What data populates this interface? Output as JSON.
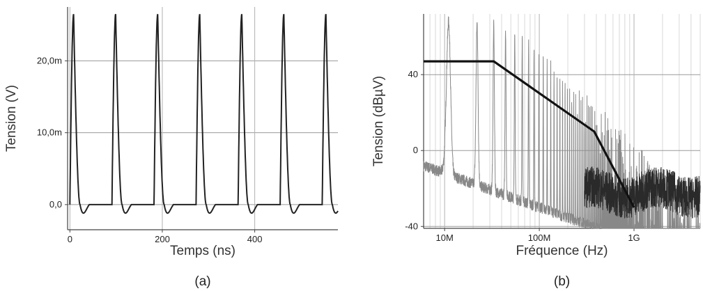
{
  "chart_data": [
    {
      "id": "a",
      "type": "line",
      "panel_label": "(a)",
      "xlabel": "Temps (ns)",
      "ylabel": "Tension (V)",
      "xlim": [
        -5,
        580
      ],
      "ylim": [
        -0.0035,
        0.0275
      ],
      "x_ticks": [
        0,
        200,
        400
      ],
      "x_tick_labels": [
        "0",
        "200",
        "400"
      ],
      "y_ticks": [
        0,
        0.01,
        0.02
      ],
      "y_tick_labels": [
        "0,0",
        "10,0m",
        "20,0m"
      ],
      "grid": true,
      "series": [
        {
          "color": "#222222",
          "pulse": {
            "period_ns": 91,
            "first_start_ns": 0,
            "peak": 0.0265,
            "undershoot": -0.0022,
            "rise_ns": 8,
            "fall_ns": 14
          }
        }
      ]
    },
    {
      "id": "b",
      "type": "line",
      "panel_label": "(b)",
      "xlabel": "Fréquence (Hz)",
      "ylabel": "Tension (dBµV)",
      "x_scale": "log",
      "xlim": [
        6000000,
        5000000000
      ],
      "ylim": [
        -41,
        72
      ],
      "x_ticks": [
        10000000,
        100000000,
        1000000000
      ],
      "x_tick_labels": [
        "10M",
        "100M",
        "1G"
      ],
      "y_ticks": [
        -40,
        0,
        40
      ],
      "y_tick_labels": [
        "-40",
        "0",
        "40"
      ],
      "grid": true,
      "series": [
        {
          "color": "#111111",
          "style": "envelope",
          "x": [
            6000000,
            33000000,
            380000000,
            1000000000
          ],
          "y": [
            47,
            47,
            10,
            -30
          ]
        },
        {
          "color": "#888888",
          "style": "spectrum",
          "fundamental_hz": 11000000,
          "harmonic_peaks_dbuv": [
            68,
            67,
            66,
            64,
            62,
            60
          ],
          "noise_floor_dbuv": [
            -18,
            -30
          ]
        }
      ]
    }
  ]
}
